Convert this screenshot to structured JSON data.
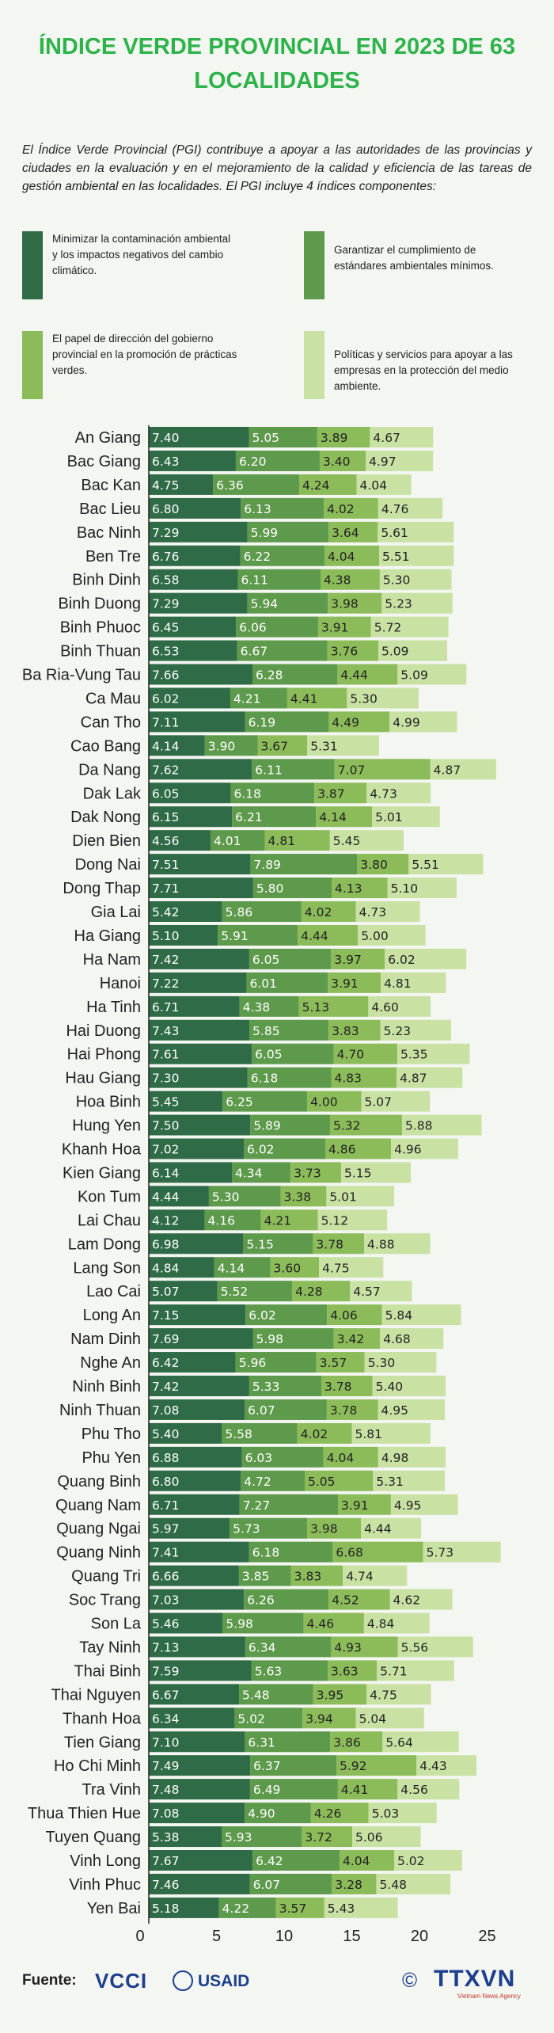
{
  "title": "ÍNDICE VERDE PROVINCIAL EN 2023 DE 63 LOCALIDADES",
  "intro": "El Índice Verde Provincial (PGI) contribuye a apoyar a las autoridades de las provincias y ciudades en la evaluación y en el mejoramiento de la calidad y eficiencia de las tareas de gestión ambiental en las localidades. El PGI incluye 4 índices componentes:",
  "colors": [
    "#2e6b46",
    "#5e9a4b",
    "#8cbc59",
    "#c9e2a4"
  ],
  "legend": [
    {
      "label": "Minimizar la contaminación ambiental y los impactos negativos del cambio climático."
    },
    {
      "label": "Garantizar el cumplimiento de estándares ambientales mínimos."
    },
    {
      "label": "El papel de dirección del gobierno provincial en la promoción de prácticas verdes."
    },
    {
      "label": "Políticas y servicios para apoyar a las empresas en la protección del medio ambiente."
    }
  ],
  "chart_data": {
    "type": "bar",
    "orientation": "horizontal",
    "stacked": true,
    "xlim": [
      0,
      27
    ],
    "xticks": [
      "0",
      "5",
      "10",
      "15",
      "20",
      "25"
    ],
    "categories": [
      "An Giang",
      "Bac Giang",
      "Bac Kan",
      "Bac Lieu",
      "Bac Ninh",
      "Ben Tre",
      "Binh Dinh",
      "Binh Duong",
      "Binh Phuoc",
      "Binh Thuan",
      "Ba Ria-Vung Tau",
      "Ca Mau",
      "Can Tho",
      "Cao Bang",
      "Da Nang",
      "Dak Lak",
      "Dak Nong",
      "Dien Bien",
      "Dong Nai",
      "Dong Thap",
      "Gia Lai",
      "Ha Giang",
      "Ha Nam",
      "Hanoi",
      "Ha Tinh",
      "Hai Duong",
      "Hai Phong",
      "Hau Giang",
      "Hoa Binh",
      "Hung Yen",
      "Khanh Hoa",
      "Kien Giang",
      "Kon Tum",
      "Lai Chau",
      "Lam Dong",
      "Lang Son",
      "Lao Cai",
      "Long An",
      "Nam Dinh",
      "Nghe An",
      "Ninh Binh",
      "Ninh Thuan",
      "Phu Tho",
      "Phu Yen",
      "Quang Binh",
      "Quang Nam",
      "Quang Ngai",
      "Quang Ninh",
      "Quang Tri",
      "Soc Trang",
      "Son La",
      "Tay Ninh",
      "Thai Binh",
      "Thai Nguyen",
      "Thanh Hoa",
      "Tien Giang",
      "Ho Chi Minh",
      "Tra Vinh",
      "Thua Thien Hue",
      "Tuyen Quang",
      "Vinh Long",
      "Vinh Phuc",
      "Yen Bai"
    ],
    "series": [
      {
        "values": [
          7.4,
          6.43,
          4.75,
          6.8,
          7.29,
          6.76,
          6.58,
          7.29,
          6.45,
          6.53,
          7.66,
          6.02,
          7.11,
          4.14,
          7.62,
          6.05,
          6.15,
          4.56,
          7.51,
          7.71,
          5.42,
          5.1,
          7.42,
          7.22,
          6.71,
          7.43,
          7.61,
          7.3,
          5.45,
          7.5,
          7.02,
          6.14,
          4.44,
          4.12,
          6.98,
          4.84,
          5.07,
          7.15,
          7.69,
          6.42,
          7.42,
          7.08,
          5.4,
          6.88,
          6.8,
          6.71,
          5.97,
          7.41,
          6.66,
          7.03,
          5.46,
          7.13,
          7.59,
          6.67,
          6.34,
          7.1,
          7.49,
          7.48,
          7.08,
          5.38,
          7.67,
          7.46,
          5.18
        ]
      },
      {
        "values": [
          5.05,
          6.2,
          6.36,
          6.13,
          5.99,
          6.22,
          6.11,
          5.94,
          6.06,
          6.67,
          6.28,
          4.21,
          6.19,
          3.9,
          6.11,
          6.18,
          6.21,
          4.01,
          7.89,
          5.8,
          5.86,
          5.91,
          6.05,
          6.01,
          4.38,
          5.85,
          6.05,
          6.18,
          6.25,
          5.89,
          6.02,
          4.34,
          5.3,
          4.16,
          5.15,
          4.14,
          5.52,
          6.02,
          5.98,
          5.96,
          5.33,
          6.07,
          5.58,
          6.03,
          4.72,
          7.27,
          5.73,
          6.18,
          3.85,
          6.26,
          5.98,
          6.34,
          5.63,
          5.48,
          5.02,
          6.31,
          6.37,
          6.49,
          4.9,
          5.93,
          6.42,
          6.07,
          4.22
        ]
      },
      {
        "values": [
          3.89,
          3.4,
          4.24,
          4.02,
          3.64,
          4.04,
          4.38,
          3.98,
          3.91,
          3.76,
          4.44,
          4.41,
          4.49,
          3.67,
          7.07,
          3.87,
          4.14,
          4.81,
          3.8,
          4.13,
          4.02,
          4.44,
          3.97,
          3.91,
          5.13,
          3.83,
          4.7,
          4.83,
          4.0,
          5.32,
          4.86,
          3.73,
          3.38,
          4.21,
          3.78,
          3.6,
          4.28,
          4.06,
          3.42,
          3.57,
          3.78,
          3.78,
          4.02,
          4.04,
          5.05,
          3.91,
          3.98,
          6.68,
          3.83,
          4.52,
          4.46,
          4.93,
          3.63,
          3.95,
          3.94,
          3.86,
          5.92,
          4.41,
          4.26,
          3.72,
          4.04,
          3.28,
          3.57
        ]
      },
      {
        "values": [
          4.67,
          4.97,
          4.04,
          4.76,
          5.61,
          5.51,
          5.3,
          5.23,
          5.72,
          5.09,
          5.09,
          5.3,
          4.99,
          5.31,
          4.87,
          4.73,
          5.01,
          5.45,
          5.51,
          5.1,
          4.73,
          5.0,
          6.02,
          4.81,
          4.6,
          5.23,
          5.35,
          4.87,
          5.07,
          5.88,
          4.96,
          5.15,
          5.01,
          5.12,
          4.88,
          4.75,
          4.57,
          5.84,
          4.68,
          5.3,
          5.4,
          4.95,
          5.81,
          4.98,
          5.31,
          4.95,
          4.44,
          5.73,
          4.74,
          4.62,
          4.84,
          5.56,
          5.71,
          4.75,
          5.04,
          5.64,
          4.43,
          4.56,
          5.03,
          5.06,
          5.02,
          5.48,
          5.43
        ]
      }
    ]
  },
  "footer": {
    "label": "Fuente:",
    "logo_vcci": "VCCI",
    "logo_usaid": "USAID",
    "copyright": "©",
    "logo_ttxvn": "TTXVN",
    "ttxvn_sub": "Vietnam News Agency"
  }
}
